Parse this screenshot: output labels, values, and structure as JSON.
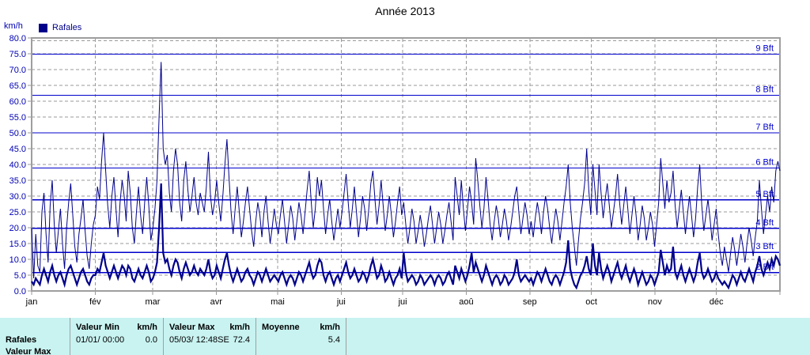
{
  "title": "Année 2013",
  "y_axis": {
    "unit": "km/h",
    "min": 0,
    "max": 80,
    "step": 5
  },
  "legend": {
    "label": "Rafales",
    "color": "#00008B"
  },
  "table": {
    "headers": [
      {
        "label": "Valeur Min",
        "unit": "km/h"
      },
      {
        "label": "Valeur Max",
        "unit": "km/h"
      },
      {
        "label": "Moyenne",
        "unit": "km/h"
      }
    ],
    "rows": [
      {
        "name": "Rafales",
        "min_date": "01/01/ 00:00",
        "min_value": "0.0",
        "max_date": "05/03/ 12:48",
        "max_dir": "SE",
        "max_value": "72.4",
        "mean_value": "5.4"
      },
      {
        "name": "Valeur Max"
      }
    ]
  },
  "chart_data": {
    "type": "line",
    "title": "Année 2013",
    "ylabel": "km/h",
    "ylim": [
      0,
      80
    ],
    "y_step": 5,
    "grid": "dashed gray every 5 km/h and at month boundaries",
    "legend_position": "top-left",
    "months": [
      "jan",
      "fév",
      "mar",
      "avr",
      "mai",
      "jui",
      "jui",
      "aoû",
      "sep",
      "oct",
      "nov",
      "déc"
    ],
    "month_days": [
      31,
      28,
      31,
      30,
      31,
      30,
      31,
      31,
      30,
      31,
      30,
      31
    ],
    "beaufort": [
      {
        "label": "2 Bft",
        "kmh": 5.8
      },
      {
        "label": "3 Bft",
        "kmh": 12.2
      },
      {
        "label": "4 Bft",
        "kmh": 19.8
      },
      {
        "label": "5 Bft",
        "kmh": 28.8
      },
      {
        "label": "6 Bft",
        "kmh": 38.9
      },
      {
        "label": "7 Bft",
        "kmh": 50.0
      },
      {
        "label": "8 Bft",
        "kmh": 61.9
      },
      {
        "label": "9 Bft",
        "kmh": 74.9
      }
    ],
    "series": [
      {
        "name": "Rafales",
        "color": "#00008B",
        "width": 1,
        "values": [
          20,
          4,
          18,
          8,
          6,
          25,
          31,
          18,
          9,
          27,
          35,
          21,
          12,
          19,
          26,
          15,
          7,
          20,
          28,
          34,
          24,
          14,
          9,
          18,
          23,
          29,
          19,
          11,
          7,
          15,
          21,
          24,
          33,
          29,
          41,
          50,
          38,
          27,
          20,
          30,
          36,
          26,
          17,
          28,
          35,
          30,
          22,
          38,
          31,
          20,
          15,
          25,
          33,
          24,
          18,
          28,
          36,
          27,
          16,
          20,
          26,
          35,
          55,
          72.4,
          45,
          40,
          43,
          31,
          25,
          38,
          45,
          40,
          28,
          22,
          35,
          41,
          32,
          25,
          30,
          36,
          28,
          24,
          31,
          28,
          25,
          33,
          44,
          30,
          24,
          28,
          35,
          28,
          22,
          30,
          40,
          48,
          36,
          25,
          18,
          26,
          33,
          25,
          17,
          22,
          28,
          33,
          26,
          19,
          14,
          22,
          28,
          24,
          17,
          25,
          30,
          22,
          15,
          20,
          26,
          21,
          18,
          24,
          29,
          22,
          15,
          21,
          27,
          23,
          16,
          22,
          28,
          24,
          18,
          25,
          32,
          38,
          28,
          20,
          26,
          36,
          30,
          35,
          26,
          18,
          24,
          29,
          22,
          16,
          21,
          26,
          20,
          25,
          31,
          37,
          28,
          20,
          26,
          33,
          25,
          17,
          23,
          30,
          26,
          19,
          26,
          34,
          38,
          29,
          21,
          27,
          35,
          27,
          19,
          24,
          30,
          24,
          17,
          22,
          28,
          33,
          24,
          28,
          21,
          15,
          20,
          26,
          22,
          15,
          19,
          24,
          20,
          14,
          18,
          23,
          27,
          21,
          15,
          20,
          25,
          21,
          15,
          19,
          24,
          28,
          22,
          16,
          36,
          30,
          24,
          35,
          26,
          19,
          26,
          33,
          28,
          21,
          42,
          35,
          27,
          20,
          26,
          36,
          29,
          21,
          16,
          22,
          27,
          23,
          17,
          21,
          26,
          22,
          16,
          20,
          25,
          30,
          33,
          25,
          18,
          23,
          28,
          24,
          18,
          22,
          17,
          23,
          28,
          24,
          18,
          25,
          30,
          26,
          20,
          15,
          21,
          26,
          22,
          16,
          22,
          28,
          33,
          40,
          28,
          20,
          14,
          8,
          16,
          23,
          28,
          34,
          45,
          32,
          24,
          40,
          32,
          24,
          40,
          31,
          23,
          29,
          34,
          27,
          20,
          25,
          30,
          37,
          28,
          21,
          27,
          33,
          26,
          18,
          24,
          30,
          24,
          16,
          21,
          27,
          23,
          16,
          20,
          25,
          21,
          14,
          21,
          28,
          42,
          34,
          26,
          35,
          28,
          31,
          38,
          27,
          20,
          26,
          32,
          25,
          18,
          24,
          30,
          24,
          17,
          23,
          33,
          40,
          27,
          19,
          24,
          29,
          23,
          16,
          21,
          26,
          18,
          12,
          8,
          14,
          10,
          6,
          12,
          17,
          13,
          8,
          13,
          18,
          14,
          9,
          15,
          20,
          16,
          11,
          17,
          22,
          35,
          26,
          18,
          24,
          30,
          25,
          33,
          28,
          38,
          41,
          38
        ]
      },
      {
        "name": "Rafales-moyenne",
        "color": "#00008B",
        "width": 2.2,
        "values": [
          3,
          2,
          4,
          3,
          2,
          5,
          7,
          5,
          3,
          6,
          8,
          5,
          3,
          5,
          6,
          4,
          2,
          5,
          7,
          8,
          6,
          4,
          2,
          4,
          6,
          7,
          5,
          3,
          2,
          4,
          5,
          5,
          7,
          6,
          9,
          12,
          8,
          6,
          4,
          6,
          8,
          6,
          4,
          6,
          8,
          7,
          5,
          8,
          7,
          4,
          3,
          5,
          7,
          5,
          4,
          6,
          8,
          6,
          3,
          4,
          6,
          9,
          20,
          34,
          12,
          9,
          10,
          7,
          5,
          8,
          10,
          9,
          6,
          4,
          7,
          9,
          7,
          5,
          6,
          8,
          6,
          5,
          7,
          6,
          5,
          7,
          10,
          6,
          4,
          5,
          8,
          6,
          4,
          7,
          10,
          12,
          8,
          5,
          3,
          5,
          7,
          5,
          3,
          4,
          6,
          7,
          5,
          4,
          2,
          4,
          6,
          5,
          3,
          5,
          7,
          5,
          3,
          4,
          5,
          4,
          3,
          5,
          6,
          4,
          2,
          4,
          5,
          4,
          2,
          4,
          6,
          5,
          3,
          5,
          7,
          9,
          6,
          4,
          5,
          8,
          10,
          9,
          5,
          3,
          5,
          6,
          4,
          2,
          4,
          5,
          3,
          5,
          7,
          9,
          6,
          4,
          5,
          7,
          5,
          3,
          4,
          6,
          5,
          3,
          5,
          8,
          10,
          7,
          4,
          5,
          8,
          6,
          3,
          4,
          6,
          4,
          2,
          4,
          5,
          7,
          4,
          12,
          6,
          3,
          4,
          5,
          4,
          2,
          3,
          5,
          4,
          2,
          3,
          4,
          5,
          4,
          2,
          4,
          5,
          4,
          2,
          3,
          5,
          6,
          4,
          2,
          8,
          6,
          4,
          7,
          5,
          3,
          5,
          8,
          12,
          6,
          9,
          7,
          5,
          3,
          5,
          8,
          6,
          4,
          2,
          4,
          5,
          4,
          2,
          3,
          5,
          4,
          2,
          3,
          4,
          6,
          10,
          5,
          3,
          4,
          5,
          4,
          3,
          4,
          2,
          4,
          6,
          5,
          3,
          5,
          7,
          5,
          3,
          2,
          4,
          5,
          4,
          2,
          4,
          6,
          9,
          16,
          7,
          4,
          2,
          1,
          3,
          5,
          6,
          8,
          11,
          7,
          5,
          15,
          8,
          5,
          12,
          7,
          4,
          6,
          8,
          6,
          3,
          5,
          7,
          9,
          6,
          4,
          6,
          8,
          5,
          3,
          5,
          7,
          5,
          2,
          4,
          6,
          4,
          2,
          3,
          5,
          4,
          2,
          4,
          6,
          13,
          9,
          5,
          8,
          6,
          7,
          14,
          6,
          4,
          6,
          8,
          5,
          3,
          5,
          7,
          5,
          3,
          5,
          9,
          12,
          6,
          4,
          5,
          7,
          5,
          3,
          4,
          6,
          4,
          3,
          2,
          3,
          2,
          1,
          3,
          5,
          4,
          2,
          4,
          6,
          4,
          3,
          5,
          7,
          5,
          3,
          6,
          8,
          11,
          7,
          5,
          7,
          9,
          7,
          10,
          8,
          11,
          10,
          8
        ]
      }
    ]
  }
}
